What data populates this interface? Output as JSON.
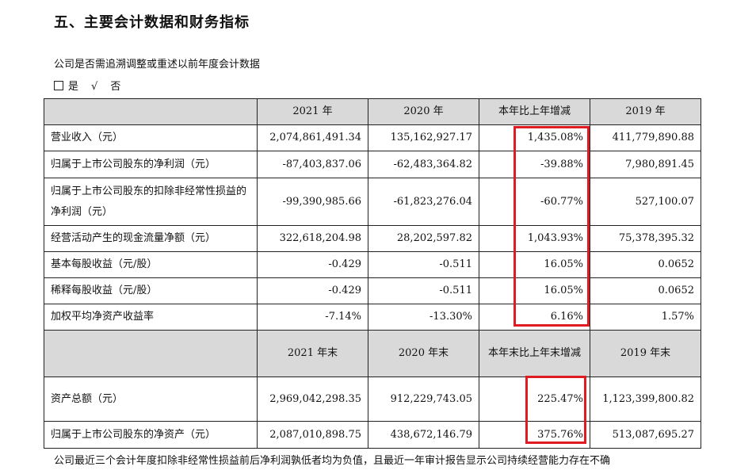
{
  "section_title": "五、主要会计数据和财务指标",
  "restatement": {
    "question": "公司是否需追溯调整或重述以前年度会计数据",
    "option_yes": "是",
    "check_mark": "√",
    "option_no": "否"
  },
  "table": {
    "header1": [
      "",
      "2021 年",
      "2020 年",
      "本年比上年增减",
      "2019 年"
    ],
    "rows1": [
      {
        "label": "营业收入（元）",
        "c2021": "2,074,861,491.34",
        "c2020": "135,162,927.17",
        "change": "1,435.08%",
        "c2019": "411,779,890.88"
      },
      {
        "label": "归属于上市公司股东的净利润（元）",
        "c2021": "-87,403,837.06",
        "c2020": "-62,483,364.82",
        "change": "-39.88%",
        "c2019": "7,980,891.45"
      },
      {
        "label": "归属于上市公司股东的扣除非经常性损益的净利润（元）",
        "c2021": "-99,390,985.66",
        "c2020": "-61,823,276.04",
        "change": "-60.77%",
        "c2019": "527,100.07"
      },
      {
        "label": "经营活动产生的现金流量净额（元）",
        "c2021": "322,618,204.98",
        "c2020": "28,202,597.82",
        "change": "1,043.93%",
        "c2019": "75,378,395.32"
      },
      {
        "label": "基本每股收益（元/股）",
        "c2021": "-0.429",
        "c2020": "-0.511",
        "change": "16.05%",
        "c2019": "0.0652"
      },
      {
        "label": "稀释每股收益（元/股）",
        "c2021": "-0.429",
        "c2020": "-0.511",
        "change": "16.05%",
        "c2019": "0.0652"
      },
      {
        "label": "加权平均净资产收益率",
        "c2021": "-7.14%",
        "c2020": "-13.30%",
        "change": "6.16%",
        "c2019": "1.57%"
      }
    ],
    "header2": [
      "",
      "2021 年末",
      "2020 年末",
      "本年末比上年末增减",
      "2019 年末"
    ],
    "rows2": [
      {
        "label": "资产总额（元）",
        "c2021": "2,969,042,298.35",
        "c2020": "912,229,743.05",
        "change": "225.47%",
        "c2019": "1,123,399,800.82"
      },
      {
        "label": "归属于上市公司股东的净资产（元）",
        "c2021": "2,087,010,898.75",
        "c2020": "438,672,146.79",
        "change": "375.76%",
        "c2019": "513,087,695.27"
      }
    ]
  },
  "footnote": "公司最近三个会计年度扣除非经常性损益前后净利润孰低者均为负值，且最近一年审计报告显示公司持续经营能力存在不确"
}
